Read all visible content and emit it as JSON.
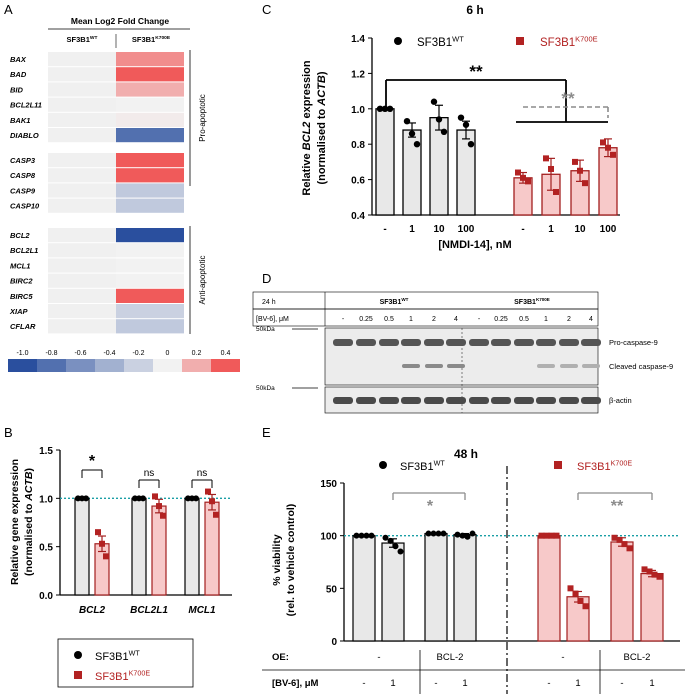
{
  "colors": {
    "wt_fill": "#e8e8e8",
    "wt_stroke": "#000000",
    "mut_fill": "#f7c9c9",
    "mut_stroke": "#a31f1f",
    "mut_point": "#b22222",
    "dotted": "#1a9fa5",
    "sig_gray": "#8c8c8c",
    "heat_neg": "#2a4f9e",
    "heat_pos": "#f05a5a"
  },
  "panelA": {
    "letter": "A",
    "title": "Mean Log2 Fold Change",
    "col_wt": "SF3B1",
    "col_wt_sup": "WT",
    "col_mut": "SF3B1",
    "col_mut_sup": "K700E",
    "groups": [
      {
        "label": "Pro-apoptotic",
        "genes": [
          "BAX",
          "BAD",
          "BID",
          "BCL2L11",
          "BAK1",
          "DIABLO"
        ],
        "values": [
          0.3,
          0.45,
          0.2,
          0,
          0.02,
          -0.8
        ]
      },
      {
        "label": "",
        "genes": [
          "CASP3",
          "CASP8",
          "CASP9",
          "CASP10"
        ],
        "values": [
          0.45,
          0.45,
          -0.25,
          -0.25
        ]
      },
      {
        "label": "Anti-apoptotic",
        "genes": [
          "BCL2",
          "BCL2L1",
          "MCL1",
          "BIRC2",
          "BIRC5",
          "XIAP",
          "CFLAR"
        ],
        "values": [
          -1.0,
          0,
          0,
          0,
          0.45,
          -0.2,
          -0.25
        ]
      }
    ],
    "scale_ticks": [
      "-1.0",
      "-0.8",
      "-0.6",
      "-0.4",
      "-0.2",
      "0",
      "0.2",
      "0.4"
    ]
  },
  "chart_data": [
    {
      "panel": "B",
      "type": "bar",
      "title": "",
      "ylabel": "Relative gene expression",
      "ylabel2": "(normalised to",
      "ylabel_ital": "ACTB",
      "ylim": [
        0,
        1.5
      ],
      "yticks": [
        "0.0",
        "0.5",
        "1.0",
        "1.5"
      ],
      "categories": [
        "BCL2",
        "BCL2L1",
        "MCL1"
      ],
      "series": [
        {
          "name": "SF3B1WT",
          "values": [
            1.0,
            1.0,
            1.0
          ],
          "points": [
            [
              1,
              1,
              1
            ],
            [
              1,
              1,
              1
            ],
            [
              1,
              1,
              1
            ]
          ]
        },
        {
          "name": "SF3B1K700E",
          "values": [
            0.53,
            0.92,
            0.96
          ],
          "errors": [
            0.08,
            0.07,
            0.08
          ],
          "points": [
            [
              0.65,
              0.53,
              0.4
            ],
            [
              1.02,
              0.92,
              0.82
            ],
            [
              1.07,
              0.97,
              0.83
            ]
          ]
        }
      ],
      "sig": [
        "*",
        "ns",
        "ns"
      ],
      "legend": {
        "wt": "SF3B1",
        "wt_sup": "WT",
        "mut": "SF3B1",
        "mut_sup": "K700E"
      }
    },
    {
      "panel": "C",
      "type": "bar",
      "title": "6 h",
      "ylabel": "Relative",
      "ylabel_ital": "BCL2",
      "ylabel_end": "expression",
      "ylabel2": "(normalised to",
      "ylabel2_ital": "ACTB",
      "xlabel": "[NMDI-14], nM",
      "ylim": [
        0.4,
        1.4
      ],
      "yticks": [
        "0.4",
        "0.6",
        "0.8",
        "1.0",
        "1.2",
        "1.4"
      ],
      "categories": [
        "-",
        "1",
        "10",
        "100",
        "-",
        "1",
        "10",
        "100"
      ],
      "values": [
        1.0,
        0.88,
        0.95,
        0.88,
        0.61,
        0.63,
        0.65,
        0.78
      ],
      "errors": [
        0,
        0.04,
        0.07,
        0.05,
        0.03,
        0.09,
        0.06,
        0.05
      ],
      "points": [
        [
          1,
          1,
          1
        ],
        [
          0.93,
          0.86,
          0.8
        ],
        [
          1.04,
          0.94,
          0.87
        ],
        [
          0.95,
          0.91,
          0.8
        ],
        [
          0.64,
          0.61,
          0.59
        ],
        [
          0.72,
          0.66,
          0.53
        ],
        [
          0.7,
          0.65,
          0.58
        ],
        [
          0.81,
          0.78,
          0.74
        ]
      ],
      "groups": [
        "wt",
        "wt",
        "wt",
        "wt",
        "mut",
        "mut",
        "mut",
        "mut"
      ],
      "sig_black": "**",
      "sig_gray": "**",
      "legend": {
        "wt": "SF3B1",
        "wt_sup": "WT",
        "mut": "SF3B1",
        "mut_sup": "K700E"
      }
    },
    {
      "panel": "E",
      "type": "bar",
      "title": "48 h",
      "ylabel": "% viability",
      "ylabel2": "(rel. to vehicle control)",
      "ylim": [
        0,
        150
      ],
      "yticks": [
        "0",
        "50",
        "100",
        "150"
      ],
      "values": [
        100,
        93,
        102,
        101,
        100,
        42,
        94,
        64
      ],
      "errors": [
        0,
        4,
        0,
        1,
        0,
        5,
        4,
        3
      ],
      "points": [
        [
          100,
          100,
          100,
          100
        ],
        [
          98,
          95,
          90,
          85
        ],
        [
          102,
          102,
          102,
          102
        ],
        [
          101,
          100,
          99,
          102
        ],
        [
          100,
          100,
          100,
          100
        ],
        [
          50,
          45,
          38,
          33
        ],
        [
          98,
          96,
          92,
          88
        ],
        [
          68,
          66,
          63,
          61
        ]
      ],
      "groups": [
        "wt",
        "wt",
        "wt",
        "wt",
        "mut",
        "mut",
        "mut",
        "mut"
      ],
      "oe_row_label": "OE:",
      "oe_values": [
        "-",
        "BCL-2",
        "-",
        "BCL-2"
      ],
      "bv_row_label": "[BV-6], μM",
      "bv_values": [
        "-",
        "1",
        "-",
        "1",
        "-",
        "1",
        "-",
        "1"
      ],
      "sig": [
        "*",
        "**"
      ],
      "legend": {
        "wt": "SF3B1",
        "wt_sup": "WT",
        "mut": "SF3B1",
        "mut_sup": "K700E"
      }
    }
  ],
  "panelD": {
    "letter": "D",
    "time": "24 h",
    "wt": "SF3B1",
    "wt_sup": "WT",
    "mut": "SF3B1",
    "mut_sup": "K700E",
    "conc_label": "[BV-6], μM",
    "concs": [
      "-",
      "0.25",
      "0.5",
      "1",
      "2",
      "4"
    ],
    "marker": "50kDa",
    "band1": "Pro-caspase-9",
    "band2": "Cleaved caspase-9",
    "band3": "β-actin"
  },
  "letters": {
    "B": "B",
    "C": "C",
    "E": "E"
  }
}
